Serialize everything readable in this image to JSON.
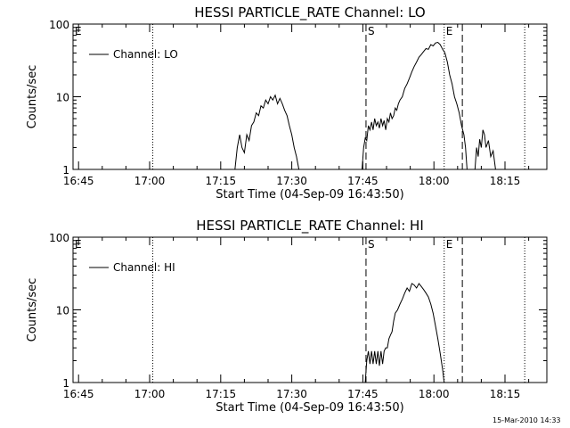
{
  "footer_timestamp": "15-Mar-2010 14:33",
  "chart_data": [
    {
      "type": "line",
      "title": "HESSI PARTICLE_RATE Channel: LO",
      "xlabel": "Start Time (04-Sep-09 16:43:50)",
      "ylabel": "Counts/sec",
      "y_scale": "log",
      "ylim": [
        1,
        100
      ],
      "xlim": [
        "16:43:50",
        "18:23:50"
      ],
      "x_unit": "minutes",
      "x_ticks": [
        "16:45",
        "17:00",
        "17:15",
        "17:30",
        "17:45",
        "18:00",
        "18:15"
      ],
      "y_ticks": [
        "1",
        "10",
        "100"
      ],
      "legend": {
        "entries": [
          "Channel: LO"
        ],
        "position": "top-left"
      },
      "markers": [
        {
          "time": "17:00:40",
          "style": "dotted",
          "label": ""
        },
        {
          "time": "17:45:40",
          "style": "dashed",
          "label": "S"
        },
        {
          "time": "18:02:10",
          "style": "dotted",
          "label": "E"
        },
        {
          "time": "18:06:00",
          "style": "dashed",
          "label": ""
        },
        {
          "time": "18:19:10",
          "style": "dotted",
          "label": ""
        }
      ],
      "edge_label": "E",
      "series": [
        {
          "name": "Channel: LO",
          "segments": [
            {
              "x": [
                "17:18:00",
                "17:18:30",
                "17:19:00",
                "17:19:30",
                "17:20:00",
                "17:20:30",
                "17:21:00",
                "17:21:30",
                "17:22:00",
                "17:22:30",
                "17:23:00",
                "17:23:30",
                "17:24:00",
                "17:24:30",
                "17:25:00",
                "17:25:30",
                "17:26:00",
                "17:26:30",
                "17:27:00",
                "17:27:30",
                "17:28:00",
                "17:28:30",
                "17:29:00",
                "17:29:30",
                "17:30:00",
                "17:30:30",
                "17:31:00",
                "17:31:30"
              ],
              "y": [
                1,
                2,
                3,
                2,
                1.7,
                3,
                2.5,
                4,
                4.5,
                6,
                5.5,
                7.5,
                7,
                9,
                8,
                10,
                9,
                10.5,
                8,
                9.5,
                8,
                6.5,
                5.5,
                4,
                3,
                2,
                1.5,
                1
              ]
            },
            {
              "x": [
                "17:44:50",
                "17:45:10",
                "17:45:30",
                "17:45:50",
                "17:46:10",
                "17:46:30",
                "17:46:50",
                "17:47:10",
                "17:47:30",
                "17:47:50",
                "17:48:10",
                "17:48:30",
                "17:48:50",
                "17:49:10",
                "17:49:30",
                "17:49:50",
                "17:50:10",
                "17:50:30",
                "17:50:50",
                "17:51:10",
                "17:51:30",
                "17:51:50",
                "17:52:10",
                "17:52:30",
                "17:52:50",
                "17:53:20",
                "17:53:50",
                "17:54:20",
                "17:54:50",
                "17:55:20",
                "17:55:50",
                "17:56:20",
                "17:56:50",
                "17:57:20",
                "17:57:50",
                "17:58:20",
                "17:58:50",
                "17:59:20",
                "17:59:50",
                "18:00:20",
                "18:00:50",
                "18:01:20",
                "18:01:50",
                "18:02:20",
                "18:02:50",
                "18:03:20",
                "18:03:50",
                "18:04:20",
                "18:04:50",
                "18:05:20",
                "18:05:50",
                "18:06:20",
                "18:06:40",
                "18:07:00"
              ],
              "y": [
                1,
                2,
                2.7,
                2.5,
                4,
                3.5,
                4.5,
                3.5,
                5,
                4,
                4.5,
                3.7,
                5,
                4,
                4.7,
                3.5,
                5,
                4.5,
                6,
                5,
                5.5,
                7,
                6.5,
                8,
                9,
                10,
                13,
                15,
                18,
                22,
                26,
                30,
                35,
                38,
                42,
                46,
                45,
                52,
                50,
                55,
                56,
                52,
                45,
                40,
                30,
                20,
                15,
                10,
                8,
                6,
                4,
                3,
                2,
                1
              ]
            },
            {
              "x": [
                "18:08:40",
                "18:09:00",
                "18:09:20",
                "18:09:40",
                "18:10:00",
                "18:10:20",
                "18:10:40",
                "18:11:00",
                "18:11:30",
                "18:12:00",
                "18:12:30",
                "18:13:00"
              ],
              "y": [
                1,
                2,
                1.5,
                2.6,
                2,
                3.5,
                3,
                2,
                2.5,
                1.5,
                1.8,
                1
              ]
            }
          ]
        }
      ]
    },
    {
      "type": "line",
      "title": "HESSI PARTICLE_RATE Channel: HI",
      "xlabel": "Start Time (04-Sep-09 16:43:50)",
      "ylabel": "Counts/sec",
      "y_scale": "log",
      "ylim": [
        1,
        100
      ],
      "xlim": [
        "16:43:50",
        "18:23:50"
      ],
      "x_unit": "minutes",
      "x_ticks": [
        "16:45",
        "17:00",
        "17:15",
        "17:30",
        "17:45",
        "18:00",
        "18:15"
      ],
      "y_ticks": [
        "1",
        "10",
        "100"
      ],
      "legend": {
        "entries": [
          "Channel: HI"
        ],
        "position": "top-left"
      },
      "markers": [
        {
          "time": "17:00:40",
          "style": "dotted",
          "label": ""
        },
        {
          "time": "17:45:40",
          "style": "dashed",
          "label": "S"
        },
        {
          "time": "18:02:10",
          "style": "dotted",
          "label": "E"
        },
        {
          "time": "18:06:00",
          "style": "dashed",
          "label": ""
        },
        {
          "time": "18:19:10",
          "style": "dotted",
          "label": ""
        }
      ],
      "edge_label": "E",
      "series": [
        {
          "name": "Channel: HI",
          "segments": [
            {
              "x": [
                "17:45:30",
                "17:45:50",
                "17:46:10",
                "17:46:30",
                "17:46:50",
                "17:47:10",
                "17:47:30",
                "17:47:50",
                "17:48:10",
                "17:48:30",
                "17:48:50",
                "17:49:10",
                "17:49:30",
                "17:49:50",
                "17:50:10",
                "17:50:30",
                "17:50:50",
                "17:51:10",
                "17:51:30",
                "17:51:50",
                "17:52:20",
                "17:52:50",
                "17:53:20",
                "17:53:50",
                "17:54:20",
                "17:54:50",
                "17:55:20",
                "17:55:50",
                "17:56:20",
                "17:56:50",
                "17:57:20",
                "17:57:50",
                "17:58:20",
                "17:58:50",
                "17:59:20",
                "17:59:50",
                "18:00:20",
                "18:00:50",
                "18:01:20",
                "18:01:50",
                "18:02:10"
              ],
              "y": [
                1,
                2,
                2.7,
                1.8,
                2.7,
                1.8,
                2.7,
                1.8,
                2.7,
                1.7,
                2.7,
                1.8,
                2.7,
                3,
                3,
                4,
                4.5,
                5,
                7,
                9,
                10,
                12,
                14,
                17,
                20,
                18,
                23,
                22,
                20,
                23,
                21,
                19,
                17,
                15,
                12,
                9,
                6,
                4,
                2.5,
                1.5,
                1
              ]
            }
          ]
        }
      ]
    }
  ]
}
